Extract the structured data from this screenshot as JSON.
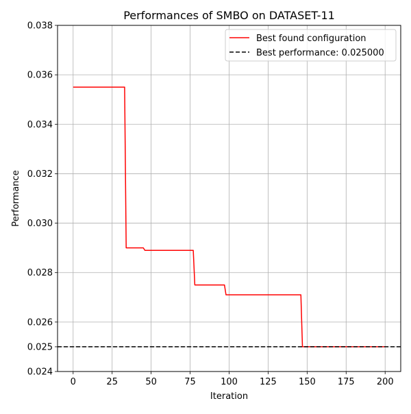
{
  "chart_data": {
    "type": "line",
    "title": "Performances of SMBO on DATASET-11",
    "xlabel": "Iteration",
    "ylabel": "Performance",
    "xlim": [
      -10,
      210
    ],
    "ylim": [
      0.024,
      0.038
    ],
    "x_ticks": [
      0,
      25,
      50,
      75,
      100,
      125,
      150,
      175,
      200
    ],
    "x_tick_labels": [
      "0",
      "25",
      "50",
      "75",
      "100",
      "125",
      "150",
      "175",
      "200"
    ],
    "y_ticks": [
      0.024,
      0.025,
      0.026,
      0.028,
      0.03,
      0.032,
      0.034,
      0.036,
      0.038
    ],
    "y_tick_labels": [
      "0.024",
      "0.025",
      "0.026",
      "0.028",
      "0.030",
      "0.032",
      "0.034",
      "0.036",
      "0.038"
    ],
    "grid": true,
    "legend_position": "top-right",
    "series": [
      {
        "name": "Best found configuration",
        "color": "#ff0000",
        "style": "solid",
        "x": [
          0,
          33,
          34,
          45,
          46,
          77,
          78,
          97,
          98,
          146,
          147,
          200
        ],
        "y": [
          0.0355,
          0.0355,
          0.029,
          0.029,
          0.0289,
          0.0289,
          0.0275,
          0.0275,
          0.0271,
          0.0271,
          0.025,
          0.025
        ]
      },
      {
        "name": "Best performance: 0.025000",
        "color": "#000000",
        "style": "dashed",
        "y": 0.025
      }
    ]
  }
}
